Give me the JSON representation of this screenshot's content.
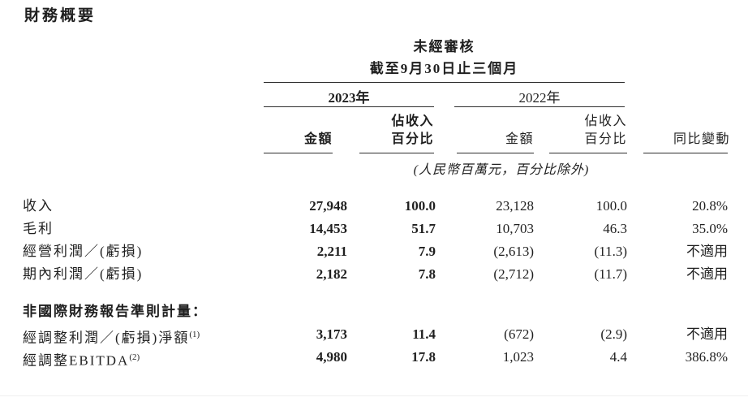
{
  "title": "財務概要",
  "header": {
    "unaudited": "未經審核",
    "period": "截至9月30日止三個月",
    "year2023": "2023年",
    "year2022": "2022年",
    "amount2023": "金額",
    "pct2023_line1": "佔收入",
    "pct2023_line2": "百分比",
    "amount2022": "金額",
    "pct2022_line1": "佔收入",
    "pct2022_line2": "百分比",
    "yoy": "同比變動",
    "unit_note": "(人民幣百萬元，百分比除外)"
  },
  "rows": [
    {
      "type": "data",
      "label": "收入",
      "sup": "",
      "amt2023": "27,948",
      "pct2023": "100.0",
      "amt2022": "23,128",
      "pct2022": "100.0",
      "yoy": "20.8%"
    },
    {
      "type": "data",
      "label": "毛利",
      "sup": "",
      "amt2023": "14,453",
      "pct2023": "51.7",
      "amt2022": "10,703",
      "pct2022": "46.3",
      "yoy": "35.0%"
    },
    {
      "type": "data",
      "label": "經營利潤／(虧損)",
      "sup": "",
      "amt2023": "2,211",
      "pct2023": "7.9",
      "amt2022": "(2,613)",
      "pct2022": "(11.3)",
      "yoy": "不適用"
    },
    {
      "type": "data",
      "label": "期內利潤／(虧損)",
      "sup": "",
      "amt2023": "2,182",
      "pct2023": "7.8",
      "amt2022": "(2,712)",
      "pct2022": "(11.7)",
      "yoy": "不適用"
    },
    {
      "type": "section",
      "label": "非國際財務報告準則計量："
    },
    {
      "type": "data",
      "label": "經調整利潤／(虧損)淨額",
      "sup": "(1)",
      "amt2023": "3,173",
      "pct2023": "11.4",
      "amt2022": "(672)",
      "pct2022": "(2.9)",
      "yoy": "不適用"
    },
    {
      "type": "data",
      "label": "經調整EBITDA",
      "sup": "(2)",
      "amt2023": "4,980",
      "pct2023": "17.8",
      "amt2022": "1,023",
      "pct2022": "4.4",
      "yoy": "386.8%"
    }
  ]
}
